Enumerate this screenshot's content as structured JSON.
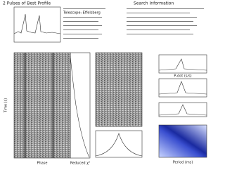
{
  "header": {
    "left_title": "2 Pulses of Best Profile",
    "right_title": "Search Information"
  },
  "info": {
    "telescope": "Telescope: Effelsberg"
  },
  "axes": {
    "phase": "Phase",
    "time": "Time (s)",
    "reduced_chi2": "Reduced χ²",
    "pdot": "P-dot (s/s)",
    "period": "Period (ms)"
  }
}
